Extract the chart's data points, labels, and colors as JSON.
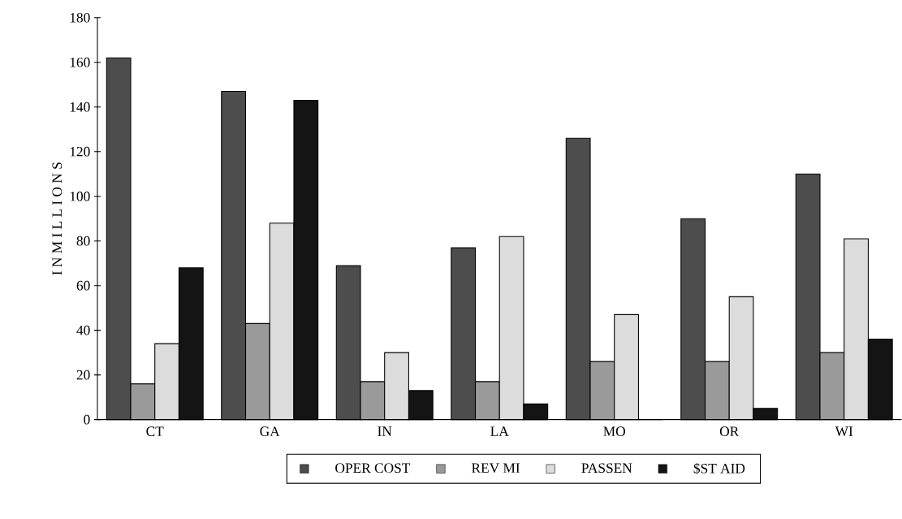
{
  "chart_data": {
    "type": "bar",
    "ylabel": "I N M I L L I O N S",
    "categories": [
      "CT",
      "GA",
      "IN",
      "LA",
      "MO",
      "OR",
      "WI"
    ],
    "series": [
      {
        "name": "OPER COST",
        "color": "#4d4d4d",
        "values": [
          162,
          147,
          69,
          77,
          126,
          90,
          110
        ]
      },
      {
        "name": "REV MI",
        "color": "#9a9a9a",
        "values": [
          16,
          43,
          17,
          17,
          26,
          26,
          30
        ]
      },
      {
        "name": "PASSEN",
        "color": "#dcdcdc",
        "values": [
          34,
          88,
          30,
          82,
          47,
          55,
          81
        ]
      },
      {
        "name": "$ST AID",
        "color": "#141414",
        "values": [
          68,
          143,
          13,
          7,
          0,
          5,
          36
        ]
      }
    ],
    "ylim": [
      0,
      180
    ],
    "yticks": [
      0,
      20,
      40,
      60,
      80,
      100,
      120,
      140,
      160,
      180
    ],
    "grid": false,
    "legend": "bottom"
  }
}
